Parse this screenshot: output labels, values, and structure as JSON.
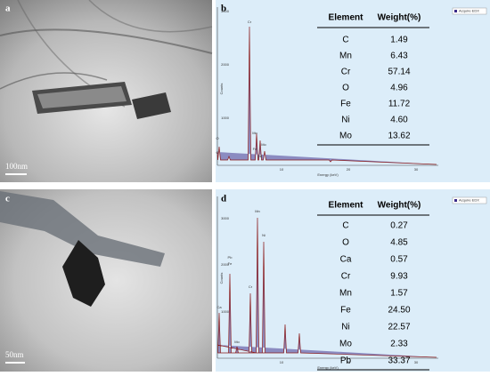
{
  "panels": [
    {
      "letter": "a",
      "scale_bar": "100nm"
    },
    {
      "letter": "b"
    },
    {
      "letter": "c",
      "scale_bar": "50nm"
    },
    {
      "letter": "d"
    }
  ],
  "spectra": [
    {
      "legend": "Acquire EDX",
      "y_label": "Counts",
      "x_label": "Energy (keV)",
      "yticks": [
        "3000",
        "2000",
        "1000"
      ],
      "xticks": [
        "10",
        "20",
        "30"
      ],
      "peak_labels": [
        "Cr",
        "Mn",
        "Fe",
        "Mo",
        "Ni",
        "O",
        "C"
      ],
      "table": {
        "header": [
          "Element",
          "Weight(%)"
        ],
        "rows": [
          [
            "C",
            "1.49"
          ],
          [
            "Mn",
            "6.43"
          ],
          [
            "Cr",
            "57.14"
          ],
          [
            "O",
            "4.96"
          ],
          [
            "Fe",
            "11.72"
          ],
          [
            "Ni",
            "4.60"
          ],
          [
            "Mo",
            "13.62"
          ]
        ]
      }
    },
    {
      "legend": "Acquire EDX",
      "y_label": "Counts",
      "x_label": "Energy (keV)",
      "yticks": [
        "3000",
        "2000",
        "1000"
      ],
      "xticks": [
        "10",
        "20",
        "30"
      ],
      "peak_labels": [
        "Mn",
        "Fe",
        "Pb",
        "Cr",
        "Ni",
        "Mo",
        "Ca"
      ],
      "table": {
        "header": [
          "Element",
          "Weight(%)"
        ],
        "rows": [
          [
            "C",
            "0.27"
          ],
          [
            "O",
            "4.85"
          ],
          [
            "Ca",
            "0.57"
          ],
          [
            "Cr",
            "9.93"
          ],
          [
            "Mn",
            "1.57"
          ],
          [
            "Fe",
            "24.50"
          ],
          [
            "Ni",
            "22.57"
          ],
          [
            "Mo",
            "2.33"
          ],
          [
            "Pb",
            "33.37"
          ]
        ]
      }
    }
  ]
}
